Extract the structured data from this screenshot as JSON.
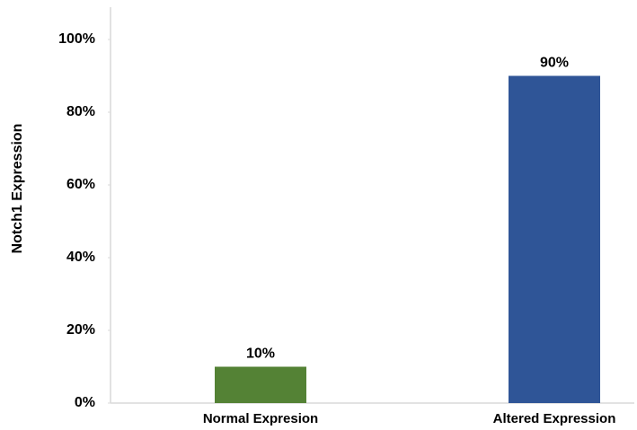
{
  "chart_data": {
    "type": "bar",
    "y_label": "Notch1 Expression",
    "categories": [
      "Normal Expresion",
      "Altered Expression"
    ],
    "values": [
      10,
      90
    ],
    "value_labels": [
      "10%",
      "90%"
    ],
    "colors": [
      "#548235",
      "#2f5597"
    ],
    "ylim": [
      0,
      100
    ],
    "yticks": [
      {
        "value": 0,
        "label": "0%"
      },
      {
        "value": 20,
        "label": "20%"
      },
      {
        "value": 40,
        "label": "40%"
      },
      {
        "value": 60,
        "label": "60%"
      },
      {
        "value": 80,
        "label": "80%"
      },
      {
        "value": 100,
        "label": "100%"
      }
    ],
    "grid": false
  }
}
